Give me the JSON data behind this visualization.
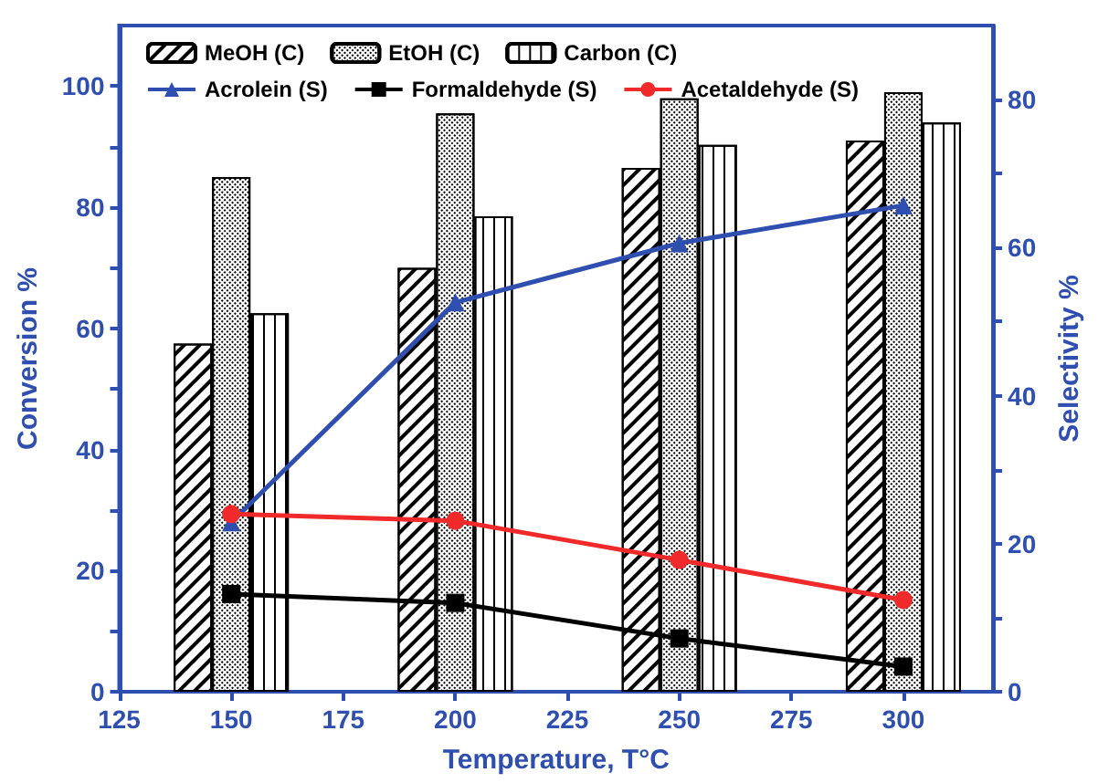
{
  "chart_data": {
    "type": "bar",
    "xlabel": "Temperature, T°C",
    "ylabel": "Conversion %",
    "y2label": "Selectivity %",
    "x": [
      150,
      200,
      250,
      300
    ],
    "xlim": [
      125,
      320
    ],
    "xticks": [
      125,
      150,
      175,
      200,
      225,
      250,
      275,
      300
    ],
    "ylim": [
      0,
      110
    ],
    "yticks": [
      0,
      {
        "value": 10,
        "label": null
      },
      20,
      {
        "value": 30,
        "label": null
      },
      40,
      {
        "value": 50,
        "label": null
      },
      60,
      {
        "value": 70,
        "label": null
      },
      80,
      {
        "value": 90,
        "label": null
      },
      100
    ],
    "y2lim": [
      0,
      90
    ],
    "y2ticks": [
      0,
      {
        "value": 10,
        "label": null
      },
      20,
      {
        "value": 30,
        "label": null
      },
      40,
      {
        "value": 50,
        "label": null
      },
      60,
      {
        "value": 70,
        "label": null
      },
      80
    ],
    "legend": "top",
    "grid": false,
    "series": [
      {
        "name": "MeOH (C)",
        "color": "#000000",
        "values": [
          57.5,
          70,
          86.5,
          91
        ]
      },
      {
        "name": "EtOH (C)",
        "color": "#000000",
        "values": [
          85,
          95.5,
          98,
          99
        ]
      },
      {
        "name": "Carbon (C)",
        "color": "#000000",
        "values": [
          62.5,
          78.5,
          90.3,
          94
        ]
      },
      {
        "name": "Acrolein (S)",
        "type": "line",
        "axis": "y2",
        "marker": "triangle",
        "color": "#2f4fb0",
        "values": [
          22.9,
          52.6,
          60.6,
          65.7
        ]
      },
      {
        "name": "Formaldehyde (S)",
        "type": "line",
        "axis": "y2",
        "marker": "square",
        "color": "#000000",
        "values": [
          13.2,
          12,
          7.2,
          3.4
        ]
      },
      {
        "name": "Acetaldehyde (S)",
        "type": "line",
        "axis": "y2",
        "marker": "circle",
        "color": "#f02a2a",
        "values": [
          24,
          23.1,
          17.8,
          12.4
        ]
      }
    ]
  }
}
